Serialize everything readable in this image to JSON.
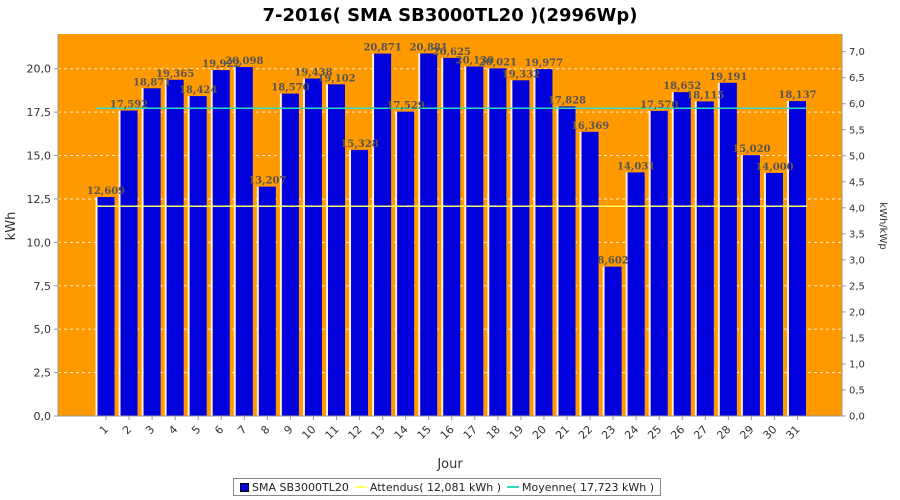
{
  "chart_data": {
    "type": "bar",
    "title": "7-2016( SMA SB3000TL20 )(2996Wp)",
    "xlabel": "Jour",
    "ylabel": "kWh",
    "y2label": "kWh/kWp",
    "ylim": [
      0,
      22
    ],
    "y2lim": [
      0,
      7.34
    ],
    "yticks": [
      "0,0",
      "2,5",
      "5,0",
      "7,5",
      "10,0",
      "12,5",
      "15,0",
      "17,5",
      "20,0"
    ],
    "y2ticks": [
      "0,0",
      "0,5",
      "1,0",
      "1,5",
      "2,0",
      "2,5",
      "3,0",
      "3,5",
      "4,0",
      "4,5",
      "5,0",
      "5,5",
      "6,0",
      "6,5",
      "7,0"
    ],
    "categories": [
      "1",
      "2",
      "3",
      "4",
      "5",
      "6",
      "7",
      "8",
      "9",
      "10",
      "11",
      "12",
      "13",
      "14",
      "15",
      "16",
      "17",
      "18",
      "19",
      "20",
      "21",
      "22",
      "23",
      "24",
      "25",
      "26",
      "27",
      "28",
      "29",
      "30",
      "31"
    ],
    "series": [
      {
        "name": "SMA SB3000TL20",
        "values": [
          12.609,
          17.592,
          18.871,
          19.365,
          18.424,
          19.922,
          20.098,
          13.207,
          18.57,
          19.438,
          19.102,
          15.328,
          20.871,
          17.529,
          20.881,
          20.625,
          20.13,
          20.021,
          19.332,
          19.977,
          17.828,
          16.369,
          8.602,
          14.031,
          17.57,
          18.652,
          18.115,
          19.191,
          15.02,
          14.0,
          18.137
        ],
        "labels": [
          "12,609",
          "17,592",
          "18,871",
          "19,365",
          "18,424",
          "19,922",
          "20,098",
          "13,207",
          "18,570",
          "19,438",
          "19,102",
          "15,328",
          "20,871",
          "17,529",
          "20,881",
          "20,625",
          "20,130",
          "20,021",
          "19,332",
          "19,977",
          "17,828",
          "16,369",
          "8,602",
          "14,031",
          "17,570",
          "18,652",
          "18,115",
          "19,191",
          "15,020",
          "14,000",
          "18,137"
        ]
      }
    ],
    "reference_lines": [
      {
        "name": "Attendus",
        "value": 12.081
      },
      {
        "name": "Moyenne",
        "value": 17.723
      }
    ],
    "grid": true,
    "legend": "bottom-center"
  },
  "legend": {
    "series_label": "SMA SB3000TL20",
    "attendus_label": "Attendus( 12,081 kWh )",
    "moyenne_label": "Moyenne( 17,723 kWh )"
  },
  "colors": {
    "plot_bg": "#ff9900",
    "bar": "#0000dd",
    "attendus": "#ffff66",
    "moyenne": "#33ddbb"
  }
}
